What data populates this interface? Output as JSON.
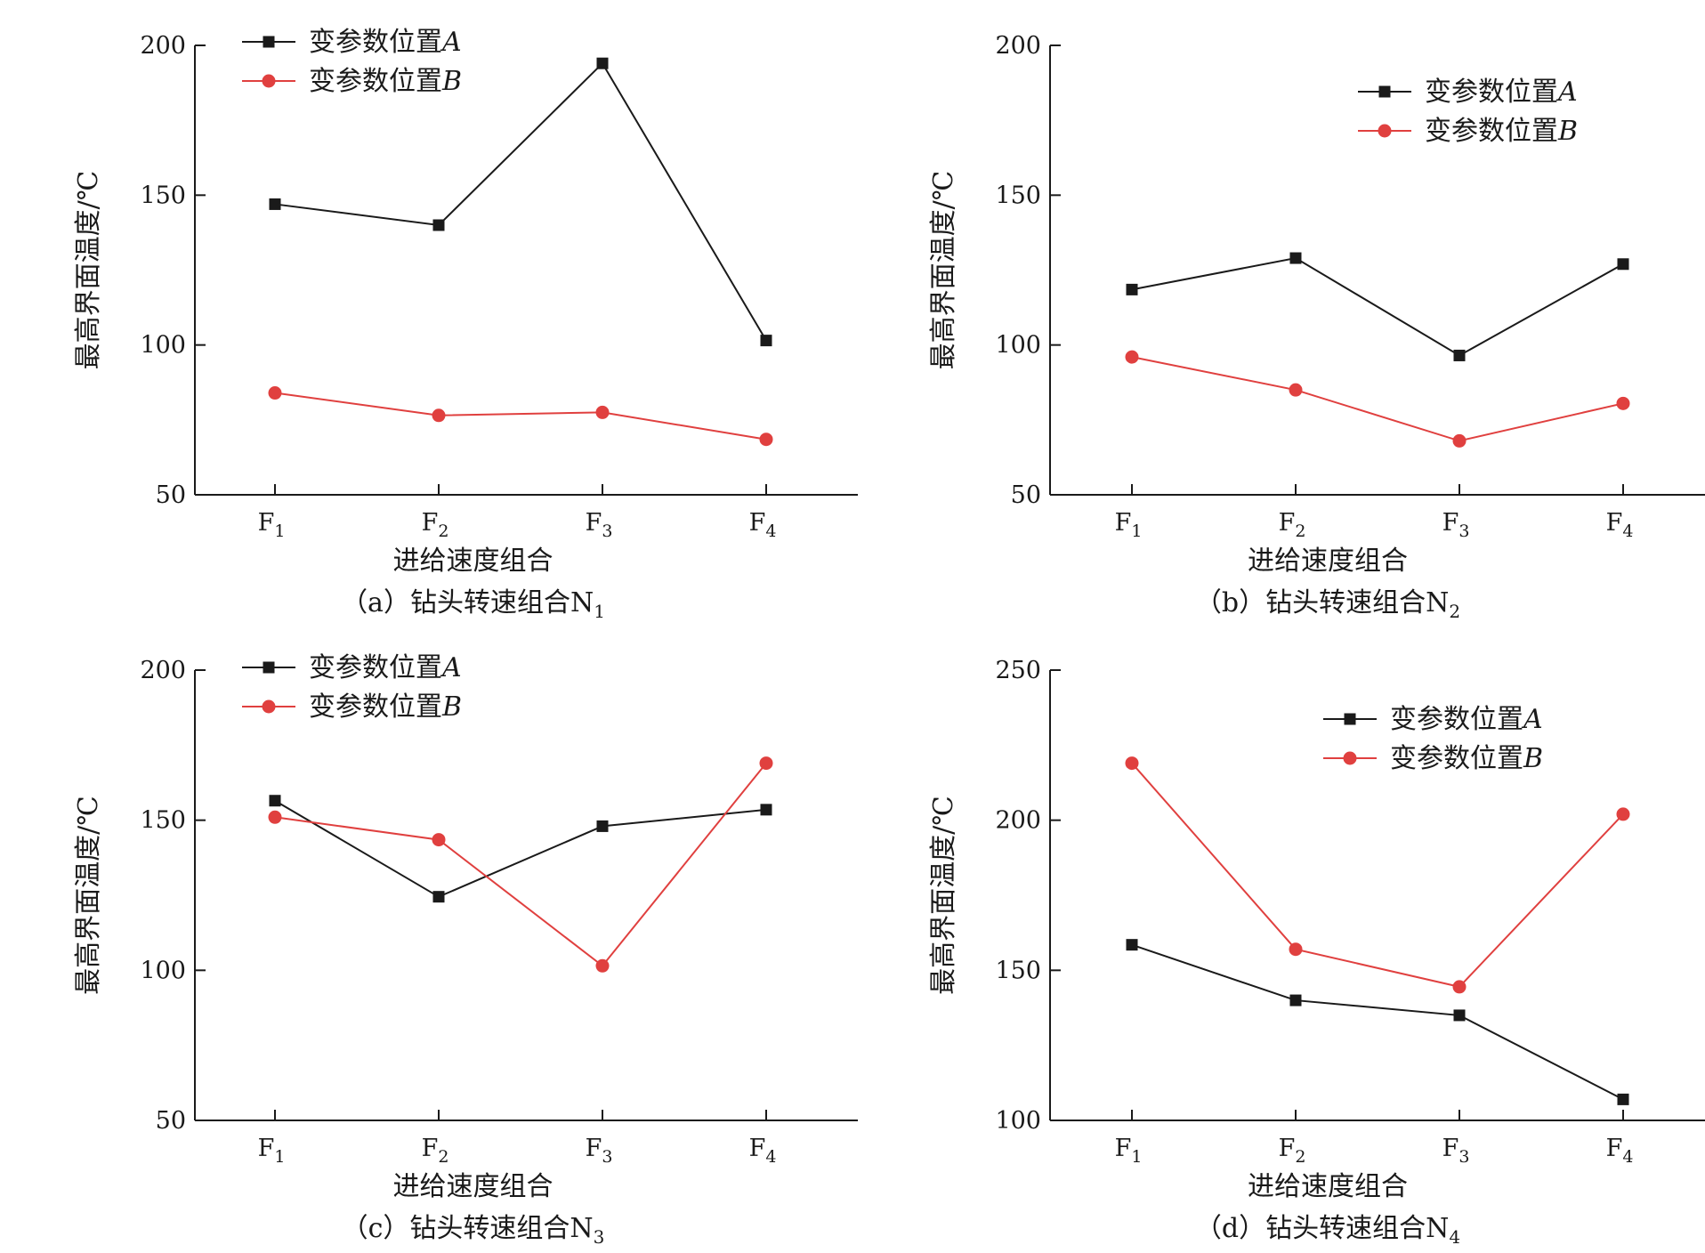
{
  "chart_data": [
    {
      "type": "line",
      "caption": "（a）钻头转速组合N",
      "caption_sub": "1",
      "xlabel": "进给速度组合",
      "ylabel": "最高界面温度/℃",
      "categories": [
        {
          "main": "F",
          "sub": "1"
        },
        {
          "main": "F",
          "sub": "2"
        },
        {
          "main": "F",
          "sub": "3"
        },
        {
          "main": "F",
          "sub": "4"
        }
      ],
      "ylim": [
        50,
        200
      ],
      "yticks": [
        50,
        100,
        150,
        200
      ],
      "legend_position": "top-left",
      "series": [
        {
          "name_prefix": "变参数位置",
          "name_var": "A",
          "marker": "square",
          "color": "#1a1a1a",
          "values": [
            147,
            140,
            194,
            101.5
          ]
        },
        {
          "name_prefix": "变参数位置",
          "name_var": "B",
          "marker": "circle",
          "color": "#e0403f",
          "values": [
            84,
            76.5,
            77.5,
            68.5
          ]
        }
      ]
    },
    {
      "type": "line",
      "caption": "（b）钻头转速组合N",
      "caption_sub": "2",
      "xlabel": "进给速度组合",
      "ylabel": "最高界面温度/℃",
      "categories": [
        {
          "main": "F",
          "sub": "1"
        },
        {
          "main": "F",
          "sub": "2"
        },
        {
          "main": "F",
          "sub": "3"
        },
        {
          "main": "F",
          "sub": "4"
        }
      ],
      "ylim": [
        50,
        200
      ],
      "yticks": [
        50,
        100,
        150,
        200
      ],
      "legend_position": "top-right",
      "series": [
        {
          "name_prefix": "变参数位置",
          "name_var": "A",
          "marker": "square",
          "color": "#1a1a1a",
          "values": [
            118.5,
            129,
            96.5,
            127
          ]
        },
        {
          "name_prefix": "变参数位置",
          "name_var": "B",
          "marker": "circle",
          "color": "#e0403f",
          "values": [
            96,
            85,
            68,
            80.5
          ]
        }
      ]
    },
    {
      "type": "line",
      "caption": "（c）钻头转速组合N",
      "caption_sub": "3",
      "xlabel": "进给速度组合",
      "ylabel": "最高界面温度/℃",
      "categories": [
        {
          "main": "F",
          "sub": "1"
        },
        {
          "main": "F",
          "sub": "2"
        },
        {
          "main": "F",
          "sub": "3"
        },
        {
          "main": "F",
          "sub": "4"
        }
      ],
      "ylim": [
        50,
        200
      ],
      "yticks": [
        50,
        100,
        150,
        200
      ],
      "legend_position": "top-left",
      "series": [
        {
          "name_prefix": "变参数位置",
          "name_var": "A",
          "marker": "square",
          "color": "#1a1a1a",
          "values": [
            156.5,
            124.5,
            148,
            153.5
          ]
        },
        {
          "name_prefix": "变参数位置",
          "name_var": "B",
          "marker": "circle",
          "color": "#e0403f",
          "values": [
            151,
            143.5,
            101.5,
            169
          ]
        }
      ]
    },
    {
      "type": "line",
      "caption": "（d）钻头转速组合N",
      "caption_sub": "4",
      "xlabel": "进给速度组合",
      "ylabel": "最高界面温度/℃",
      "categories": [
        {
          "main": "F",
          "sub": "1"
        },
        {
          "main": "F",
          "sub": "2"
        },
        {
          "main": "F",
          "sub": "3"
        },
        {
          "main": "F",
          "sub": "4"
        }
      ],
      "ylim": [
        100,
        250
      ],
      "yticks": [
        100,
        150,
        200,
        250
      ],
      "legend_position": "top-right",
      "series": [
        {
          "name_prefix": "变参数位置",
          "name_var": "A",
          "marker": "square",
          "color": "#1a1a1a",
          "values": [
            158.5,
            140,
            135,
            107
          ]
        },
        {
          "name_prefix": "变参数位置",
          "name_var": "B",
          "marker": "circle",
          "color": "#e0403f",
          "values": [
            219,
            157,
            144.5,
            202
          ]
        }
      ]
    }
  ]
}
